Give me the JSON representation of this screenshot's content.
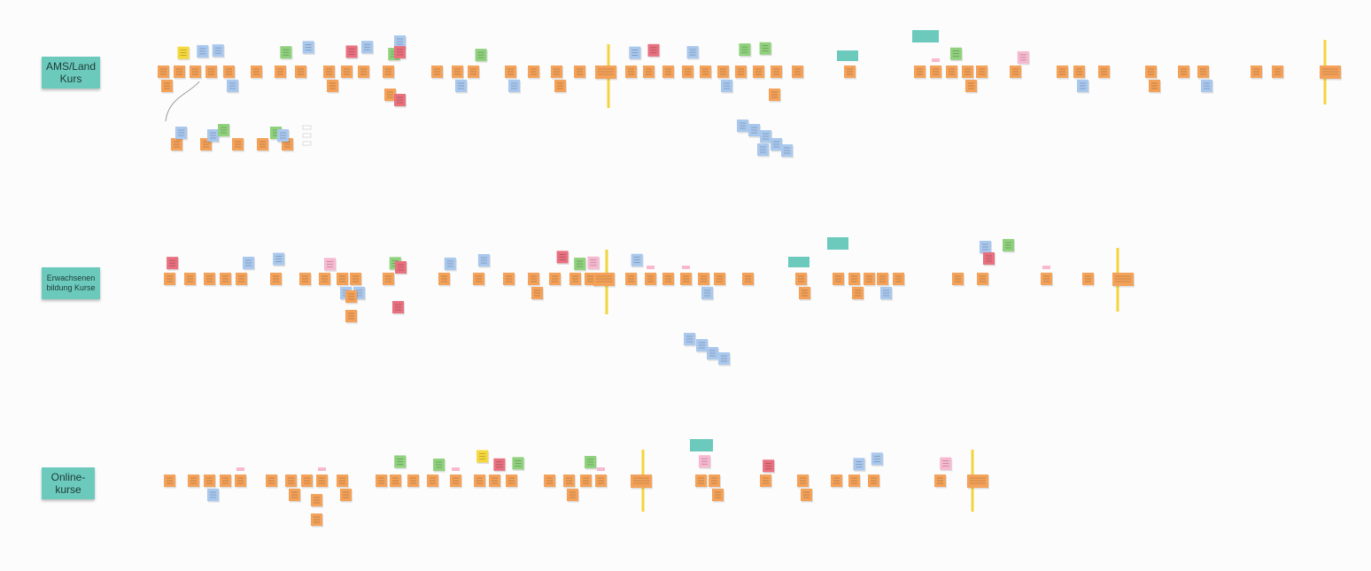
{
  "lanes": [
    {
      "label": "AMS/Land Kurs"
    },
    {
      "label": "Erwachsenen bildung Kurse"
    },
    {
      "label": "Online-kurse"
    }
  ]
}
